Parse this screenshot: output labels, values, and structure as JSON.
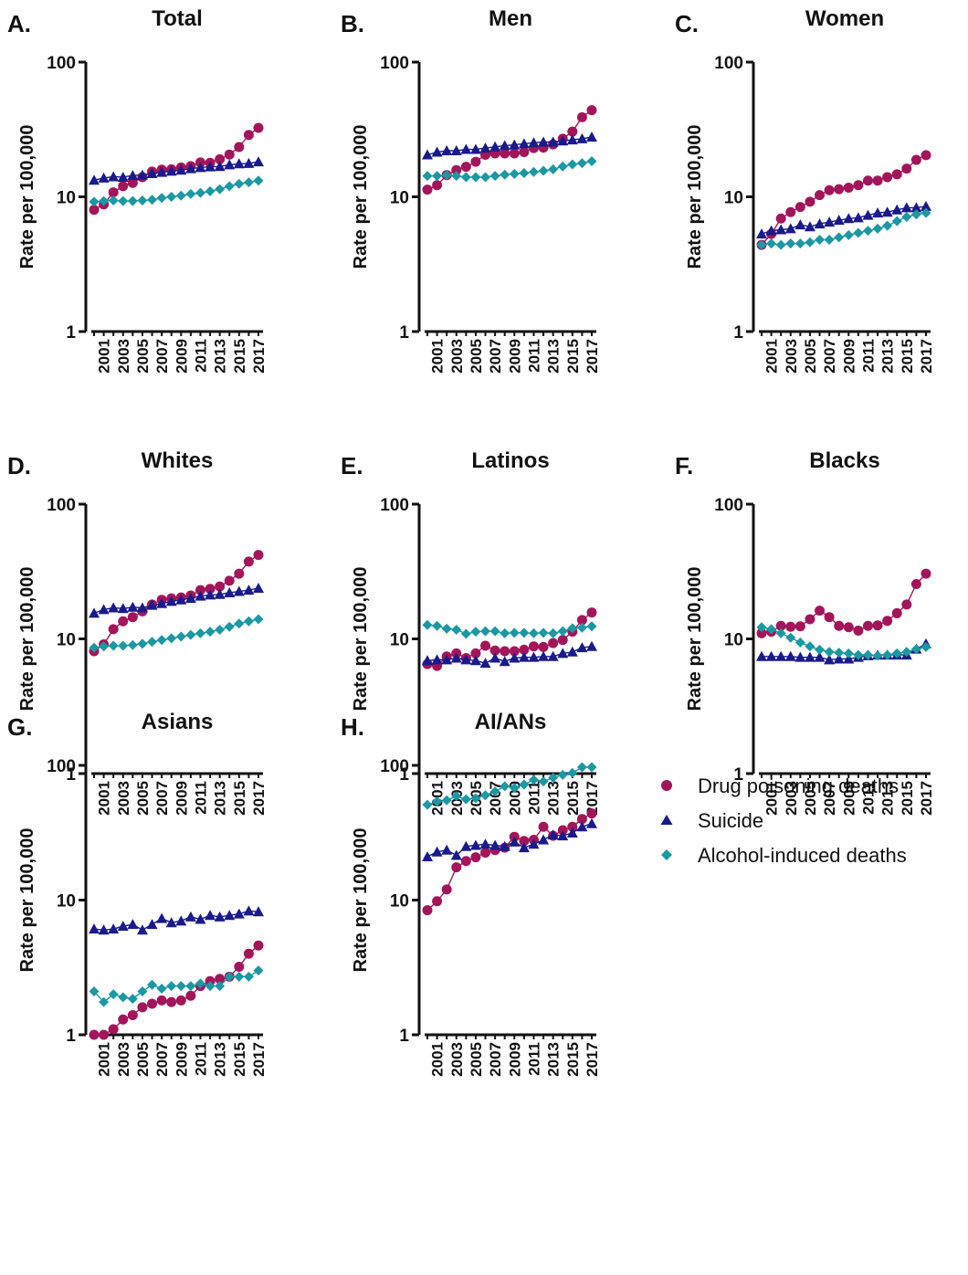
{
  "legend": {
    "placement": "right",
    "entries": [
      {
        "label": "Drug poisoning deaths",
        "marker": "circle",
        "color": "#A3155A"
      },
      {
        "label": "Suicide",
        "marker": "triangle",
        "color": "#1A1A8A"
      },
      {
        "label": "Alcohol-induced deaths",
        "marker": "diamond",
        "color": "#1B98A2"
      }
    ]
  },
  "chart_data": [
    {
      "type": "scatter",
      "panel": "A.",
      "title": "Total",
      "xlabel": "",
      "ylabel": "Rate per 100,000",
      "yscale": "log",
      "ylim": [
        1,
        100
      ],
      "yticks": [
        "1",
        "10",
        "100"
      ],
      "x": [
        2000,
        2001,
        2002,
        2003,
        2004,
        2005,
        2006,
        2007,
        2008,
        2009,
        2010,
        2011,
        2012,
        2013,
        2014,
        2015,
        2016,
        2017
      ],
      "xtick_labels": [
        "2001",
        "2003",
        "2005",
        "2007",
        "2009",
        "2011",
        "2013",
        "2015",
        "2017"
      ],
      "series": [
        {
          "name": "Drug poisoning deaths",
          "values": [
            8.0,
            8.8,
            10.8,
            12.0,
            12.7,
            14.0,
            15.4,
            15.9,
            16.0,
            16.5,
            16.9,
            18.0,
            17.9,
            19.0,
            20.6,
            23.4,
            28.8,
            32.5
          ]
        },
        {
          "name": "Suicide",
          "values": [
            13.3,
            13.8,
            14.1,
            14.0,
            14.4,
            14.5,
            14.9,
            15.2,
            15.5,
            15.8,
            16.2,
            16.5,
            16.7,
            16.8,
            17.3,
            17.6,
            17.7,
            18.2
          ]
        },
        {
          "name": "Alcohol-induced deaths",
          "values": [
            9.2,
            9.3,
            9.4,
            9.3,
            9.3,
            9.4,
            9.5,
            9.8,
            10.0,
            10.2,
            10.5,
            10.7,
            11.0,
            11.4,
            12.0,
            12.5,
            12.8,
            13.2
          ]
        }
      ]
    },
    {
      "type": "scatter",
      "panel": "B.",
      "title": "Men",
      "xlabel": "",
      "ylabel": "Rate per 100,000",
      "yscale": "log",
      "ylim": [
        1,
        100
      ],
      "yticks": [
        "1",
        "10",
        "100"
      ],
      "x": [
        2000,
        2001,
        2002,
        2003,
        2004,
        2005,
        2006,
        2007,
        2008,
        2009,
        2010,
        2011,
        2012,
        2013,
        2014,
        2015,
        2016,
        2017
      ],
      "xtick_labels": [
        "2001",
        "2003",
        "2005",
        "2007",
        "2009",
        "2011",
        "2013",
        "2015",
        "2017"
      ],
      "series": [
        {
          "name": "Drug poisoning deaths",
          "values": [
            11.3,
            12.2,
            14.5,
            15.8,
            16.7,
            18.2,
            20.5,
            21.0,
            21.0,
            21.0,
            21.5,
            23.0,
            23.2,
            24.5,
            27.0,
            30.5,
            39.0,
            44.0
          ]
        },
        {
          "name": "Suicide",
          "values": [
            20.5,
            21.5,
            22.0,
            22.0,
            22.5,
            22.5,
            23.0,
            23.5,
            24.0,
            24.3,
            24.8,
            25.2,
            25.5,
            25.5,
            26.0,
            26.5,
            27.0,
            27.8
          ]
        },
        {
          "name": "Alcohol-induced deaths",
          "values": [
            14.3,
            14.3,
            14.5,
            14.3,
            14.0,
            14.0,
            14.0,
            14.3,
            14.6,
            14.8,
            15.0,
            15.3,
            15.6,
            16.0,
            16.8,
            17.4,
            17.8,
            18.4
          ]
        }
      ]
    },
    {
      "type": "scatter",
      "panel": "C.",
      "title": "Women",
      "xlabel": "",
      "ylabel": "Rate per 100,000",
      "yscale": "log",
      "ylim": [
        1,
        100
      ],
      "yticks": [
        "1",
        "10",
        "100"
      ],
      "x": [
        2000,
        2001,
        2002,
        2003,
        2004,
        2005,
        2006,
        2007,
        2008,
        2009,
        2010,
        2011,
        2012,
        2013,
        2014,
        2015,
        2016,
        2017
      ],
      "xtick_labels": [
        "2001",
        "2003",
        "2005",
        "2007",
        "2009",
        "2011",
        "2013",
        "2015",
        "2017"
      ],
      "series": [
        {
          "name": "Drug poisoning deaths",
          "values": [
            4.4,
            5.3,
            6.9,
            7.7,
            8.4,
            9.2,
            10.3,
            11.2,
            11.4,
            11.7,
            12.2,
            13.2,
            13.2,
            14.0,
            14.7,
            16.2,
            18.8,
            20.4
          ]
        },
        {
          "name": "Suicide",
          "values": [
            5.3,
            5.6,
            5.7,
            5.8,
            6.2,
            6.0,
            6.3,
            6.5,
            6.7,
            6.9,
            7.0,
            7.3,
            7.6,
            7.7,
            8.0,
            8.3,
            8.3,
            8.5
          ]
        },
        {
          "name": "Alcohol-induced deaths",
          "values": [
            4.4,
            4.5,
            4.4,
            4.5,
            4.5,
            4.6,
            4.8,
            4.8,
            5.0,
            5.2,
            5.4,
            5.6,
            5.8,
            6.1,
            6.6,
            7.1,
            7.4,
            7.6
          ]
        }
      ]
    },
    {
      "type": "scatter",
      "panel": "D.",
      "title": "Whites",
      "xlabel": "",
      "ylabel": "Rate per 100,000",
      "yscale": "log",
      "ylim": [
        1,
        100
      ],
      "yticks": [
        "1",
        "10",
        "100"
      ],
      "x": [
        2000,
        2001,
        2002,
        2003,
        2004,
        2005,
        2006,
        2007,
        2008,
        2009,
        2010,
        2011,
        2012,
        2013,
        2014,
        2015,
        2016,
        2017
      ],
      "xtick_labels": [
        "2001",
        "2003",
        "2005",
        "2007",
        "2009",
        "2011",
        "2013",
        "2015",
        "2017"
      ],
      "series": [
        {
          "name": "Drug poisoning deaths",
          "values": [
            8.1,
            9.1,
            11.8,
            13.5,
            14.5,
            16.0,
            18.0,
            19.5,
            20.0,
            20.3,
            21.0,
            23.0,
            23.5,
            24.5,
            27.0,
            30.5,
            37.5,
            42.0
          ]
        },
        {
          "name": "Suicide",
          "values": [
            15.5,
            16.5,
            17.0,
            16.8,
            17.2,
            17.0,
            17.8,
            18.3,
            19.0,
            19.5,
            20.0,
            20.8,
            21.2,
            21.4,
            22.0,
            22.5,
            23.0,
            23.8
          ]
        },
        {
          "name": "Alcohol-induced deaths",
          "values": [
            8.6,
            8.8,
            8.9,
            8.9,
            9.0,
            9.2,
            9.5,
            9.8,
            10.1,
            10.4,
            10.7,
            11.0,
            11.3,
            11.7,
            12.3,
            13.0,
            13.5,
            14.0
          ]
        }
      ]
    },
    {
      "type": "scatter",
      "panel": "E.",
      "title": "Latinos",
      "xlabel": "",
      "ylabel": "Rate per 100,000",
      "yscale": "log",
      "ylim": [
        1,
        100
      ],
      "yticks": [
        "1",
        "10",
        "100"
      ],
      "x": [
        2000,
        2001,
        2002,
        2003,
        2004,
        2005,
        2006,
        2007,
        2008,
        2009,
        2010,
        2011,
        2012,
        2013,
        2014,
        2015,
        2016,
        2017
      ],
      "xtick_labels": [
        "2001",
        "2003",
        "2005",
        "2007",
        "2009",
        "2011",
        "2013",
        "2015",
        "2017"
      ],
      "series": [
        {
          "name": "Drug poisoning deaths",
          "values": [
            6.5,
            6.3,
            7.4,
            7.8,
            7.2,
            7.8,
            8.9,
            8.2,
            8.1,
            8.1,
            8.3,
            8.8,
            8.7,
            9.3,
            9.8,
            11.3,
            13.8,
            15.7
          ]
        },
        {
          "name": "Suicide",
          "values": [
            6.9,
            7.0,
            7.0,
            7.2,
            7.0,
            6.9,
            6.6,
            7.2,
            6.8,
            7.2,
            7.3,
            7.3,
            7.4,
            7.4,
            7.8,
            8.0,
            8.6,
            8.8
          ]
        },
        {
          "name": "Alcohol-induced deaths",
          "values": [
            12.7,
            12.5,
            11.9,
            11.7,
            10.9,
            11.3,
            11.4,
            11.4,
            11.0,
            11.1,
            11.1,
            11.0,
            11.1,
            11.0,
            11.4,
            12.0,
            12.1,
            12.4
          ]
        }
      ]
    },
    {
      "type": "scatter",
      "panel": "F.",
      "title": "Blacks",
      "xlabel": "",
      "ylabel": "Rate per 100,000",
      "yscale": "log",
      "ylim": [
        1,
        100
      ],
      "yticks": [
        "1",
        "10",
        "100"
      ],
      "x": [
        2000,
        2001,
        2002,
        2003,
        2004,
        2005,
        2006,
        2007,
        2008,
        2009,
        2010,
        2011,
        2012,
        2013,
        2014,
        2015,
        2016,
        2017
      ],
      "xtick_labels": [
        "2001",
        "2003",
        "2005",
        "2007",
        "2009",
        "2011",
        "2013",
        "2015",
        "2017"
      ],
      "series": [
        {
          "name": "Drug poisoning deaths",
          "values": [
            11.0,
            11.3,
            12.5,
            12.3,
            12.4,
            14.0,
            16.2,
            14.5,
            12.5,
            12.2,
            11.5,
            12.5,
            12.6,
            13.6,
            15.5,
            18.0,
            25.5,
            30.5
          ]
        },
        {
          "name": "Suicide",
          "values": [
            7.4,
            7.4,
            7.4,
            7.4,
            7.3,
            7.3,
            7.3,
            7.0,
            7.1,
            7.1,
            7.3,
            7.5,
            7.6,
            7.6,
            7.6,
            7.6,
            8.4,
            9.2
          ]
        },
        {
          "name": "Alcohol-induced deaths",
          "values": [
            12.2,
            11.8,
            11.0,
            10.2,
            9.4,
            8.8,
            8.3,
            8.0,
            7.9,
            7.8,
            7.6,
            7.6,
            7.5,
            7.6,
            7.8,
            8.0,
            8.4,
            8.7
          ]
        }
      ]
    },
    {
      "type": "scatter",
      "panel": "G.",
      "title": "Asians",
      "xlabel": "",
      "ylabel": "Rate per 100,000",
      "yscale": "log",
      "ylim": [
        1,
        100
      ],
      "yticks": [
        "1",
        "10",
        "100"
      ],
      "x": [
        2000,
        2001,
        2002,
        2003,
        2004,
        2005,
        2006,
        2007,
        2008,
        2009,
        2010,
        2011,
        2012,
        2013,
        2014,
        2015,
        2016,
        2017
      ],
      "xtick_labels": [
        "2001",
        "2003",
        "2005",
        "2007",
        "2009",
        "2011",
        "2013",
        "2015",
        "2017"
      ],
      "series": [
        {
          "name": "Drug poisoning deaths",
          "values": [
            1.0,
            1.0,
            1.1,
            1.3,
            1.4,
            1.6,
            1.7,
            1.8,
            1.75,
            1.8,
            1.95,
            2.3,
            2.5,
            2.6,
            2.7,
            3.2,
            4.0,
            4.6
          ]
        },
        {
          "name": "Suicide",
          "values": [
            6.1,
            6.0,
            6.1,
            6.4,
            6.6,
            6.0,
            6.6,
            7.3,
            6.8,
            7.0,
            7.5,
            7.2,
            7.7,
            7.5,
            7.7,
            7.9,
            8.3,
            8.2
          ]
        },
        {
          "name": "Alcohol-induced deaths",
          "values": [
            2.1,
            1.75,
            2.0,
            1.9,
            1.85,
            2.1,
            2.35,
            2.2,
            2.3,
            2.3,
            2.3,
            2.4,
            2.3,
            2.3,
            2.7,
            2.7,
            2.7,
            3.0
          ]
        }
      ]
    },
    {
      "type": "scatter",
      "panel": "H.",
      "title": "AI/ANs",
      "xlabel": "",
      "ylabel": "Rate per 100,000",
      "yscale": "log",
      "ylim": [
        1,
        100
      ],
      "yticks": [
        "1",
        "10",
        "100"
      ],
      "x": [
        2000,
        2001,
        2002,
        2003,
        2004,
        2005,
        2006,
        2007,
        2008,
        2009,
        2010,
        2011,
        2012,
        2013,
        2014,
        2015,
        2016,
        2017
      ],
      "xtick_labels": [
        "2001",
        "2003",
        "2005",
        "2007",
        "2009",
        "2011",
        "2013",
        "2015",
        "2017"
      ],
      "series": [
        {
          "name": "Drug poisoning deaths",
          "values": [
            8.4,
            9.8,
            12.0,
            17.5,
            19.5,
            20.8,
            22.5,
            23.5,
            24.5,
            29.5,
            27.5,
            28.0,
            35.0,
            30.0,
            33.0,
            35.0,
            40.0,
            44.0
          ]
        },
        {
          "name": "Suicide",
          "values": [
            21.0,
            22.8,
            23.5,
            21.5,
            25.0,
            25.5,
            26.0,
            25.5,
            25.0,
            27.0,
            24.5,
            26.0,
            28.0,
            30.5,
            30.0,
            31.5,
            35.0,
            37.0
          ]
        },
        {
          "name": "Alcohol-induced deaths",
          "values": [
            51.0,
            54.0,
            55.0,
            59.0,
            56.0,
            57.0,
            60.0,
            64.0,
            70.0,
            68.0,
            72.0,
            78.0,
            76.0,
            81.0,
            85.0,
            88.0,
            97.0,
            97.0
          ]
        }
      ]
    }
  ]
}
